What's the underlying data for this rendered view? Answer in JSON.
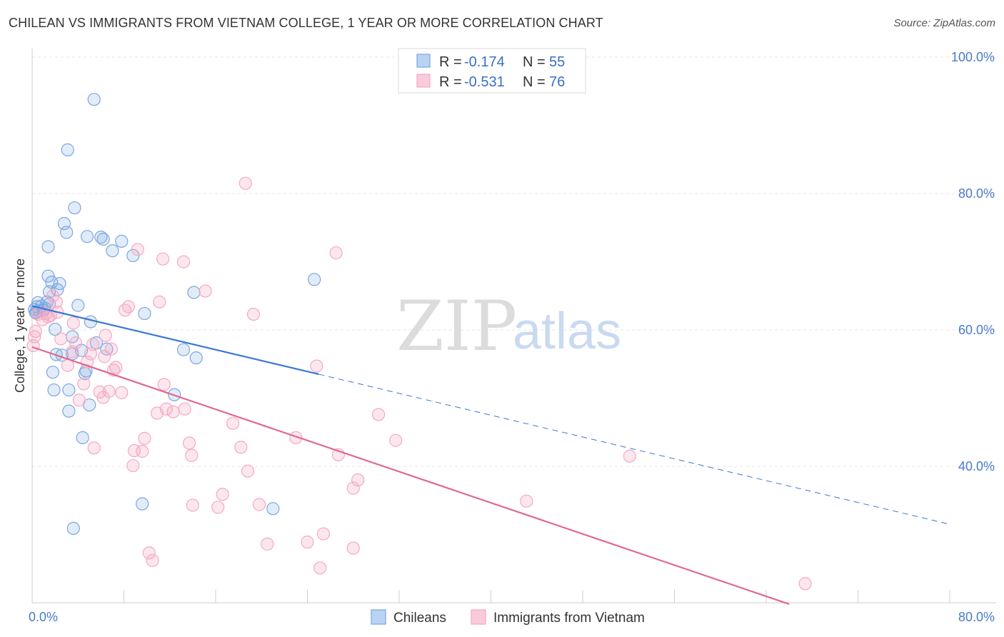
{
  "title": "CHILEAN VS IMMIGRANTS FROM VIETNAM COLLEGE, 1 YEAR OR MORE CORRELATION CHART",
  "source": "Source: ZipAtlas.com",
  "watermark": {
    "zip": "ZIP",
    "atlas": "atlas"
  },
  "chart_data": {
    "type": "scatter",
    "title": "CHILEAN VS IMMIGRANTS FROM VIETNAM COLLEGE, 1 YEAR OR MORE CORRELATION CHART",
    "xlabel": "",
    "ylabel": "College, 1 year or more",
    "xlim": [
      0,
      80
    ],
    "ylim": [
      20,
      100
    ],
    "x_tick_labels": [
      {
        "value": 0,
        "label": "0.0%"
      },
      {
        "value": 80,
        "label": "80.0%"
      }
    ],
    "y_tick_labels": [
      {
        "value": 100,
        "label": "100.0%"
      },
      {
        "value": 80,
        "label": "80.0%"
      },
      {
        "value": 60,
        "label": "60.0%"
      },
      {
        "value": 40,
        "label": "40.0%"
      }
    ],
    "grid": true,
    "legend_position": "top-center",
    "series": [
      {
        "name": "Chileans",
        "color": "#7ba7e0",
        "line_color": "#3a78d4",
        "R": "-0.174",
        "N": "55",
        "trend": {
          "x": [
            0,
            25
          ],
          "y": [
            63.5,
            53.5
          ]
        },
        "trend_dashed": {
          "x": [
            25,
            80
          ],
          "y": [
            53.5,
            31.5
          ]
        },
        "points": [
          [
            0.3,
            62.5
          ],
          [
            0.4,
            63.4
          ],
          [
            0.5,
            64.0
          ],
          [
            0.6,
            62.8
          ],
          [
            0.8,
            63.5
          ],
          [
            1.0,
            62.9
          ],
          [
            1.1,
            63.2
          ],
          [
            1.3,
            64.1
          ],
          [
            1.5,
            63.8
          ],
          [
            1.4,
            72.2
          ],
          [
            1.4,
            67.9
          ],
          [
            1.5,
            65.6
          ],
          [
            1.7,
            67.0
          ],
          [
            2.0,
            60.1
          ],
          [
            2.2,
            65.9
          ],
          [
            2.4,
            66.8
          ],
          [
            2.6,
            56.3
          ],
          [
            2.8,
            75.6
          ],
          [
            3.0,
            74.3
          ],
          [
            3.1,
            86.4
          ],
          [
            3.2,
            51.2
          ],
          [
            3.2,
            48.1
          ],
          [
            3.5,
            59.0
          ],
          [
            3.5,
            56.5
          ],
          [
            3.7,
            77.9
          ],
          [
            4.0,
            63.6
          ],
          [
            4.3,
            57.0
          ],
          [
            4.4,
            44.2
          ],
          [
            4.6,
            53.6
          ],
          [
            4.7,
            54.0
          ],
          [
            4.8,
            73.7
          ],
          [
            5.0,
            49.0
          ],
          [
            5.1,
            61.2
          ],
          [
            5.4,
            93.8
          ],
          [
            5.6,
            58.1
          ],
          [
            6.0,
            73.6
          ],
          [
            6.2,
            73.3
          ],
          [
            6.5,
            57.2
          ],
          [
            7.0,
            71.6
          ],
          [
            7.8,
            73.0
          ],
          [
            8.8,
            70.9
          ],
          [
            9.6,
            34.5
          ],
          [
            9.8,
            62.4
          ],
          [
            12.4,
            50.5
          ],
          [
            13.2,
            57.1
          ],
          [
            14.1,
            65.5
          ],
          [
            14.3,
            55.9
          ],
          [
            21.0,
            33.8
          ],
          [
            24.6,
            67.4
          ],
          [
            0.4,
            62.6
          ],
          [
            1.8,
            53.8
          ],
          [
            1.9,
            51.2
          ],
          [
            2.1,
            56.4
          ],
          [
            3.6,
            30.9
          ],
          [
            0.2,
            63.0
          ]
        ]
      },
      {
        "name": "Immigrants from Vietnam",
        "color": "#f4a9c3",
        "line_color": "#e0688f",
        "R": "-0.531",
        "N": "76",
        "trend": {
          "x": [
            0,
            66
          ],
          "y": [
            57.5,
            19.8
          ]
        },
        "points": [
          [
            0.1,
            57.7
          ],
          [
            0.3,
            59.8
          ],
          [
            0.5,
            62.3
          ],
          [
            0.9,
            61.5
          ],
          [
            1.2,
            62.4
          ],
          [
            1.4,
            61.9
          ],
          [
            1.6,
            62.1
          ],
          [
            1.8,
            65.0
          ],
          [
            2.1,
            64.1
          ],
          [
            2.2,
            62.6
          ],
          [
            2.5,
            58.7
          ],
          [
            3.1,
            54.8
          ],
          [
            3.5,
            56.8
          ],
          [
            3.6,
            61.0
          ],
          [
            3.8,
            58.1
          ],
          [
            4.1,
            49.7
          ],
          [
            4.5,
            52.1
          ],
          [
            4.8,
            55.3
          ],
          [
            5.1,
            56.5
          ],
          [
            5.3,
            57.9
          ],
          [
            5.4,
            42.7
          ],
          [
            5.9,
            50.9
          ],
          [
            6.2,
            50.1
          ],
          [
            6.3,
            56.1
          ],
          [
            6.4,
            59.2
          ],
          [
            6.7,
            51.0
          ],
          [
            6.9,
            57.2
          ],
          [
            7.1,
            54.1
          ],
          [
            7.3,
            54.5
          ],
          [
            7.8,
            50.8
          ],
          [
            8.1,
            62.9
          ],
          [
            8.4,
            63.4
          ],
          [
            8.8,
            40.1
          ],
          [
            8.9,
            42.3
          ],
          [
            9.2,
            71.8
          ],
          [
            9.6,
            42.2
          ],
          [
            9.8,
            44.1
          ],
          [
            10.2,
            27.3
          ],
          [
            10.5,
            26.2
          ],
          [
            10.9,
            47.8
          ],
          [
            11.1,
            64.1
          ],
          [
            11.4,
            70.4
          ],
          [
            11.5,
            52.0
          ],
          [
            11.7,
            48.4
          ],
          [
            12.3,
            48.0
          ],
          [
            13.3,
            48.4
          ],
          [
            13.2,
            70.0
          ],
          [
            13.7,
            43.4
          ],
          [
            13.9,
            41.6
          ],
          [
            14.0,
            34.3
          ],
          [
            15.1,
            65.7
          ],
          [
            16.2,
            34.0
          ],
          [
            16.6,
            35.9
          ],
          [
            17.5,
            46.3
          ],
          [
            18.2,
            42.8
          ],
          [
            18.6,
            81.5
          ],
          [
            18.8,
            39.3
          ],
          [
            19.3,
            62.3
          ],
          [
            19.8,
            34.4
          ],
          [
            20.5,
            28.6
          ],
          [
            23.0,
            44.2
          ],
          [
            24.0,
            28.9
          ],
          [
            24.8,
            54.7
          ],
          [
            25.1,
            25.1
          ],
          [
            25.4,
            30.1
          ],
          [
            26.5,
            71.3
          ],
          [
            26.7,
            41.7
          ],
          [
            28.0,
            36.8
          ],
          [
            28.4,
            38.0
          ],
          [
            28.0,
            28.0
          ],
          [
            30.2,
            47.6
          ],
          [
            31.7,
            43.8
          ],
          [
            43.1,
            34.9
          ],
          [
            52.1,
            41.5
          ],
          [
            67.4,
            22.8
          ],
          [
            0.2,
            59.0
          ]
        ]
      }
    ]
  },
  "legend": {
    "rows": [
      {
        "r_label": "R =",
        "r_value": "-0.174",
        "n_label": "N =",
        "n_value": "55"
      },
      {
        "r_label": "R =",
        "r_value": "-0.531",
        "n_label": "N =",
        "n_value": "76"
      }
    ]
  },
  "bottom_legend": [
    "Chileans",
    "Immigrants from Vietnam"
  ]
}
